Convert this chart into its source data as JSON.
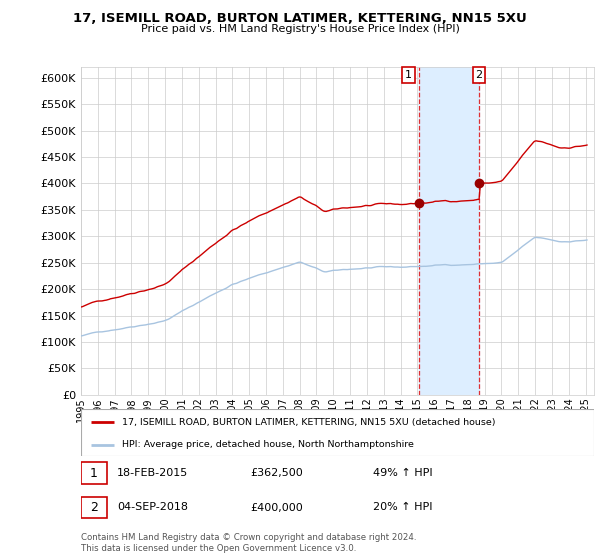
{
  "title": "17, ISEMILL ROAD, BURTON LATIMER, KETTERING, NN15 5XU",
  "subtitle": "Price paid vs. HM Land Registry's House Price Index (HPI)",
  "ylim": [
    0,
    620000
  ],
  "yticks": [
    0,
    50000,
    100000,
    150000,
    200000,
    250000,
    300000,
    350000,
    400000,
    450000,
    500000,
    550000,
    600000
  ],
  "hpi_color": "#a8c4e0",
  "price_color": "#cc0000",
  "shaded_color": "#ddeeff",
  "transaction1_year": 2015.12,
  "transaction2_year": 2018.67,
  "transaction1_price": 362500,
  "transaction2_price": 400000,
  "legend_house_label": "17, ISEMILL ROAD, BURTON LATIMER, KETTERING, NN15 5XU (detached house)",
  "legend_hpi_label": "HPI: Average price, detached house, North Northamptonshire",
  "note1_num": "1",
  "note1_date": "18-FEB-2015",
  "note1_price": "£362,500",
  "note1_hpi": "49% ↑ HPI",
  "note2_num": "2",
  "note2_date": "04-SEP-2018",
  "note2_price": "£400,000",
  "note2_hpi": "20% ↑ HPI",
  "footer": "Contains HM Land Registry data © Crown copyright and database right 2024.\nThis data is licensed under the Open Government Licence v3.0.",
  "background_color": "#ffffff",
  "grid_color": "#cccccc"
}
